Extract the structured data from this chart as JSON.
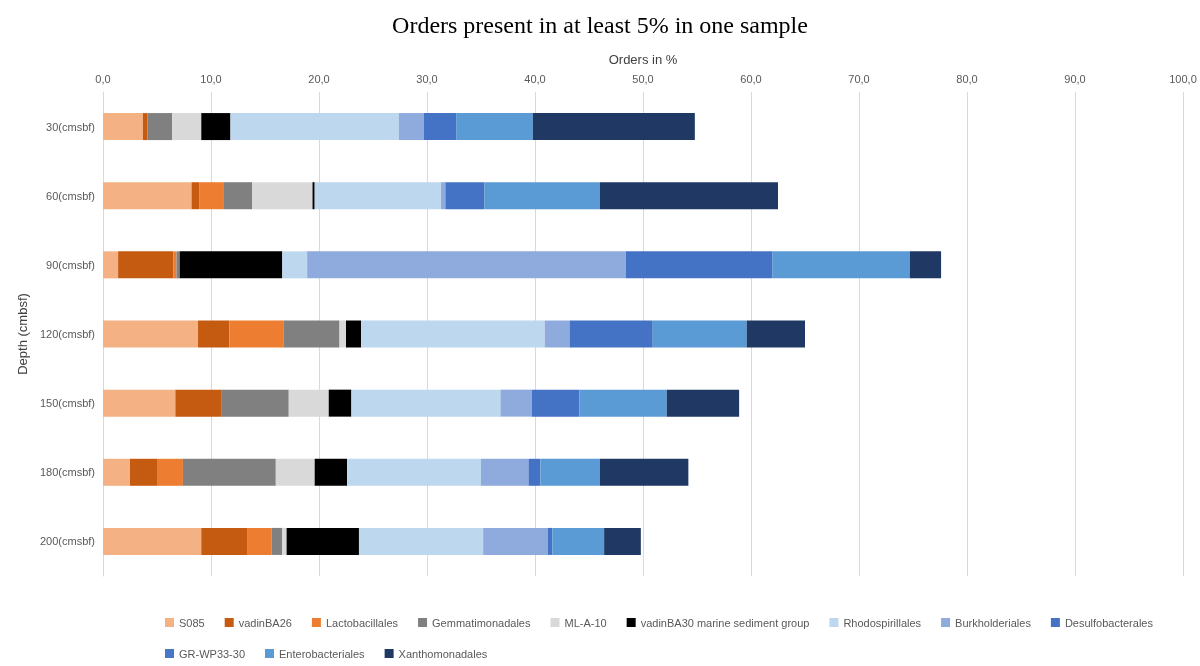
{
  "chart_data": {
    "type": "bar",
    "title": "Orders present in at least 5% in one sample",
    "xlabel": "Orders in %",
    "ylabel": "Depth (cmbsf)",
    "orientation": "horizontal",
    "stacked": true,
    "categories": [
      "30(cmsbf)",
      "60(cmsbf)",
      "90(cmsbf)",
      "120(cmsbf)",
      "150(cmsbf)",
      "180(cmsbf)",
      "200(cmsbf)"
    ],
    "series": [
      {
        "name": "S085",
        "color": "#f4b183",
        "values": [
          3.7,
          8.2,
          1.4,
          8.8,
          6.7,
          2.5,
          9.1
        ]
      },
      {
        "name": "vadinBA26",
        "color": "#c55a11",
        "values": [
          0.4,
          0.7,
          5.1,
          2.9,
          4.3,
          2.5,
          4.3
        ]
      },
      {
        "name": "Lactobacillales",
        "color": "#ed7d31",
        "values": [
          0,
          2.3,
          0.3,
          5.0,
          0,
          2.4,
          2.2
        ]
      },
      {
        "name": "Gemmatimonadales",
        "color": "#808080",
        "values": [
          2.3,
          2.6,
          0.3,
          5.2,
          6.2,
          8.6,
          1.0
        ]
      },
      {
        "name": "ML-A-10",
        "color": "#d9d9d9",
        "values": [
          2.7,
          5.6,
          0,
          0.6,
          3.7,
          3.6,
          0.4
        ]
      },
      {
        "name": "vadinBA30 marine sediment group",
        "color": "#000000",
        "values": [
          2.7,
          0.2,
          9.5,
          1.4,
          2.1,
          3.0,
          6.7
        ]
      },
      {
        "name": "Rhodospirillales",
        "color": "#bdd7ee",
        "values": [
          15.6,
          11.7,
          2.3,
          17.0,
          13.8,
          12.4,
          11.5
        ]
      },
      {
        "name": "Burkholderiales",
        "color": "#8faadc",
        "values": [
          2.3,
          0.4,
          29.5,
          2.3,
          2.9,
          4.4,
          6.0
        ]
      },
      {
        "name": "Desulfobacterales",
        "color": "#4472c4",
        "values": [
          3.0,
          3.6,
          13.6,
          7.7,
          4.4,
          1.1,
          0.4
        ]
      },
      {
        "name": "GR-WP33-30",
        "color": "#4a76c8",
        "values": [
          0,
          0,
          0,
          0,
          0,
          0,
          0
        ]
      },
      {
        "name": "Enterobacteriales",
        "color": "#5b9bd5",
        "values": [
          7.1,
          10.7,
          12.7,
          8.7,
          8.1,
          5.5,
          4.8
        ]
      },
      {
        "name": "Xanthomonadales",
        "color": "#203864",
        "values": [
          15.0,
          16.5,
          2.9,
          5.4,
          6.7,
          8.2,
          3.4
        ]
      }
    ],
    "xlim": [
      0,
      100
    ],
    "xticks": [
      {
        "value": 0,
        "label": "0,0"
      },
      {
        "value": 10,
        "label": "10,0"
      },
      {
        "value": 20,
        "label": "20,0"
      },
      {
        "value": 30,
        "label": "30,0"
      },
      {
        "value": 40,
        "label": "40,0"
      },
      {
        "value": 50,
        "label": "50,0"
      },
      {
        "value": 60,
        "label": "60,0"
      },
      {
        "value": 70,
        "label": "70,0"
      },
      {
        "value": 80,
        "label": "80,0"
      },
      {
        "value": 90,
        "label": "90,0"
      },
      {
        "value": 100,
        "label": "100,0"
      }
    ],
    "grid": "x",
    "legend": "bottom"
  }
}
